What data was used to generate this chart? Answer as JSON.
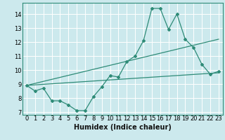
{
  "xlabel": "Humidex (Indice chaleur)",
  "bg_color": "#cce9ed",
  "grid_color": "#ffffff",
  "line_color": "#2e8b77",
  "xlim": [
    -0.5,
    23.5
  ],
  "ylim": [
    6.8,
    14.8
  ],
  "xticks": [
    0,
    1,
    2,
    3,
    4,
    5,
    6,
    7,
    8,
    9,
    10,
    11,
    12,
    13,
    14,
    15,
    16,
    17,
    18,
    19,
    20,
    21,
    22,
    23
  ],
  "yticks": [
    7,
    8,
    9,
    10,
    11,
    12,
    13,
    14
  ],
  "line1_x": [
    0,
    1,
    2,
    3,
    4,
    5,
    6,
    7,
    8,
    9,
    10,
    11,
    12,
    13,
    14,
    15,
    16,
    17,
    18,
    19,
    20,
    21,
    22,
    23
  ],
  "line1_y": [
    8.9,
    8.5,
    8.7,
    7.8,
    7.8,
    7.5,
    7.1,
    7.1,
    8.1,
    8.8,
    9.6,
    9.5,
    10.6,
    11.0,
    12.1,
    14.4,
    14.4,
    12.9,
    14.0,
    12.2,
    11.6,
    10.4,
    9.7,
    9.9
  ],
  "line2_x": [
    0,
    23
  ],
  "line2_y": [
    8.9,
    9.8
  ],
  "line3_x": [
    0,
    23
  ],
  "line3_y": [
    8.9,
    12.2
  ],
  "xlabel_fontsize": 7,
  "tick_fontsize": 6
}
